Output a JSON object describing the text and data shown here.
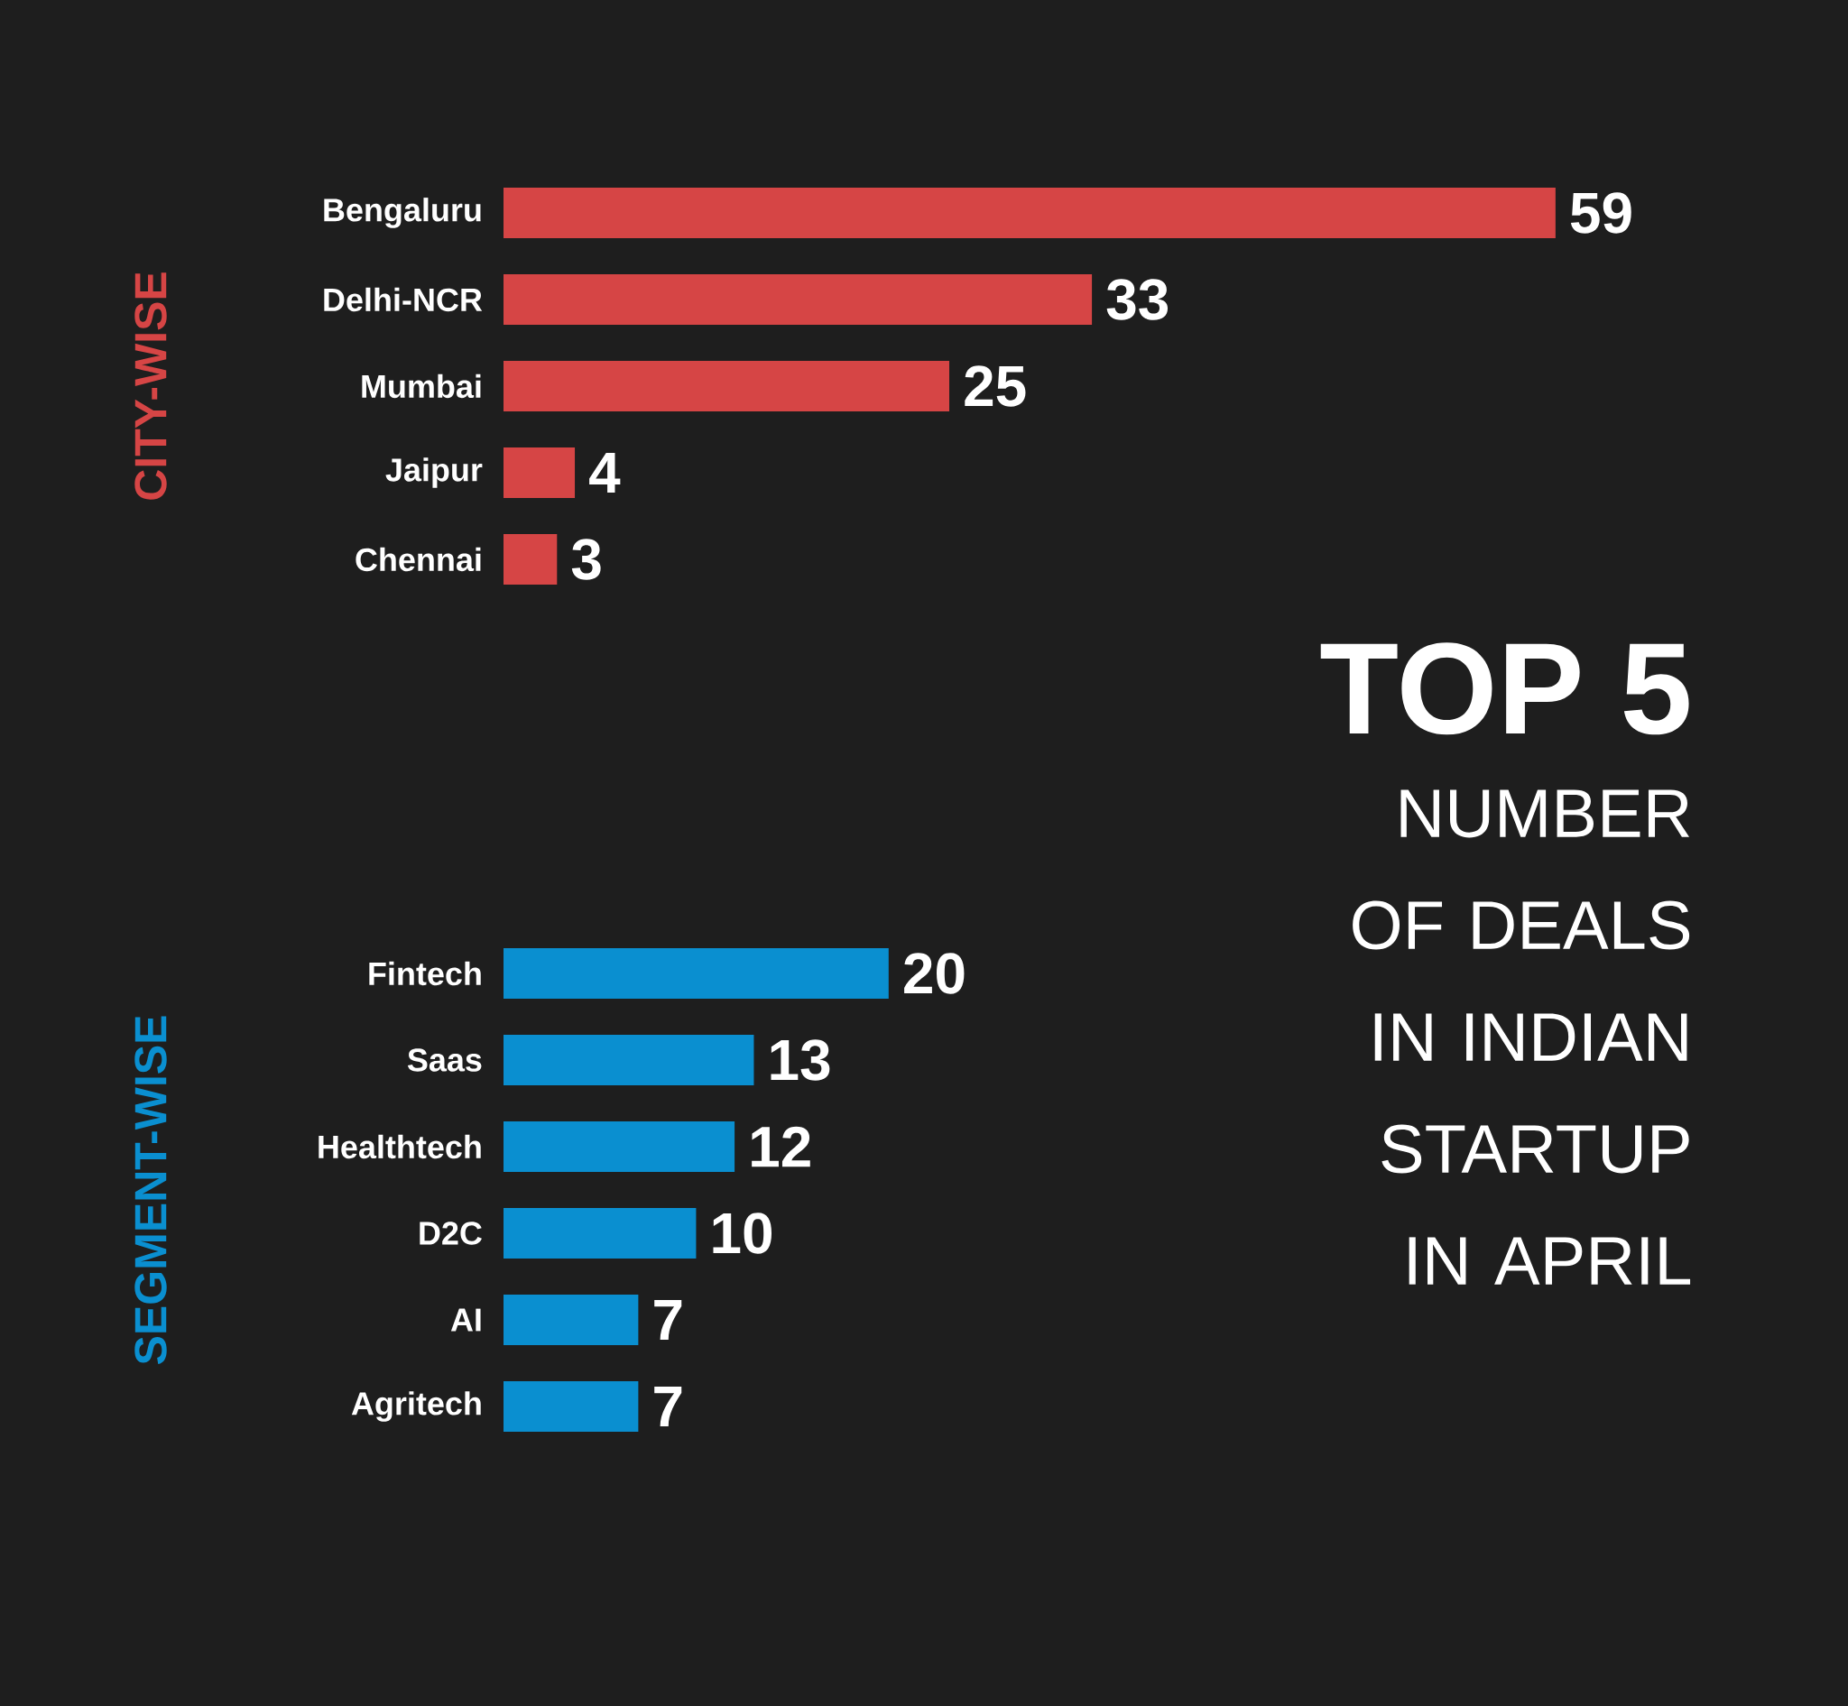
{
  "chart_data": [
    {
      "type": "bar",
      "orientation": "horizontal",
      "title": "TOP 5",
      "subtitle": "NUMBER OF DEALS IN INDIAN STARTUP IN APRIL",
      "ylabel": "CITY-WISE",
      "categories": [
        "Bengaluru",
        "Delhi-NCR",
        "Mumbai",
        "Jaipur",
        "Chennai"
      ],
      "values": [
        59,
        33,
        25,
        4,
        3
      ],
      "color": "#d64545",
      "data_labels": true
    },
    {
      "type": "bar",
      "orientation": "horizontal",
      "ylabel": "SEGMENT-WISE",
      "categories": [
        "Fintech",
        "Saas",
        "Healthtech",
        "D2C",
        "AI",
        "Agritech"
      ],
      "values": [
        20,
        13,
        12,
        10,
        7,
        7
      ],
      "color": "#0a8fd0",
      "data_labels": true
    }
  ]
}
